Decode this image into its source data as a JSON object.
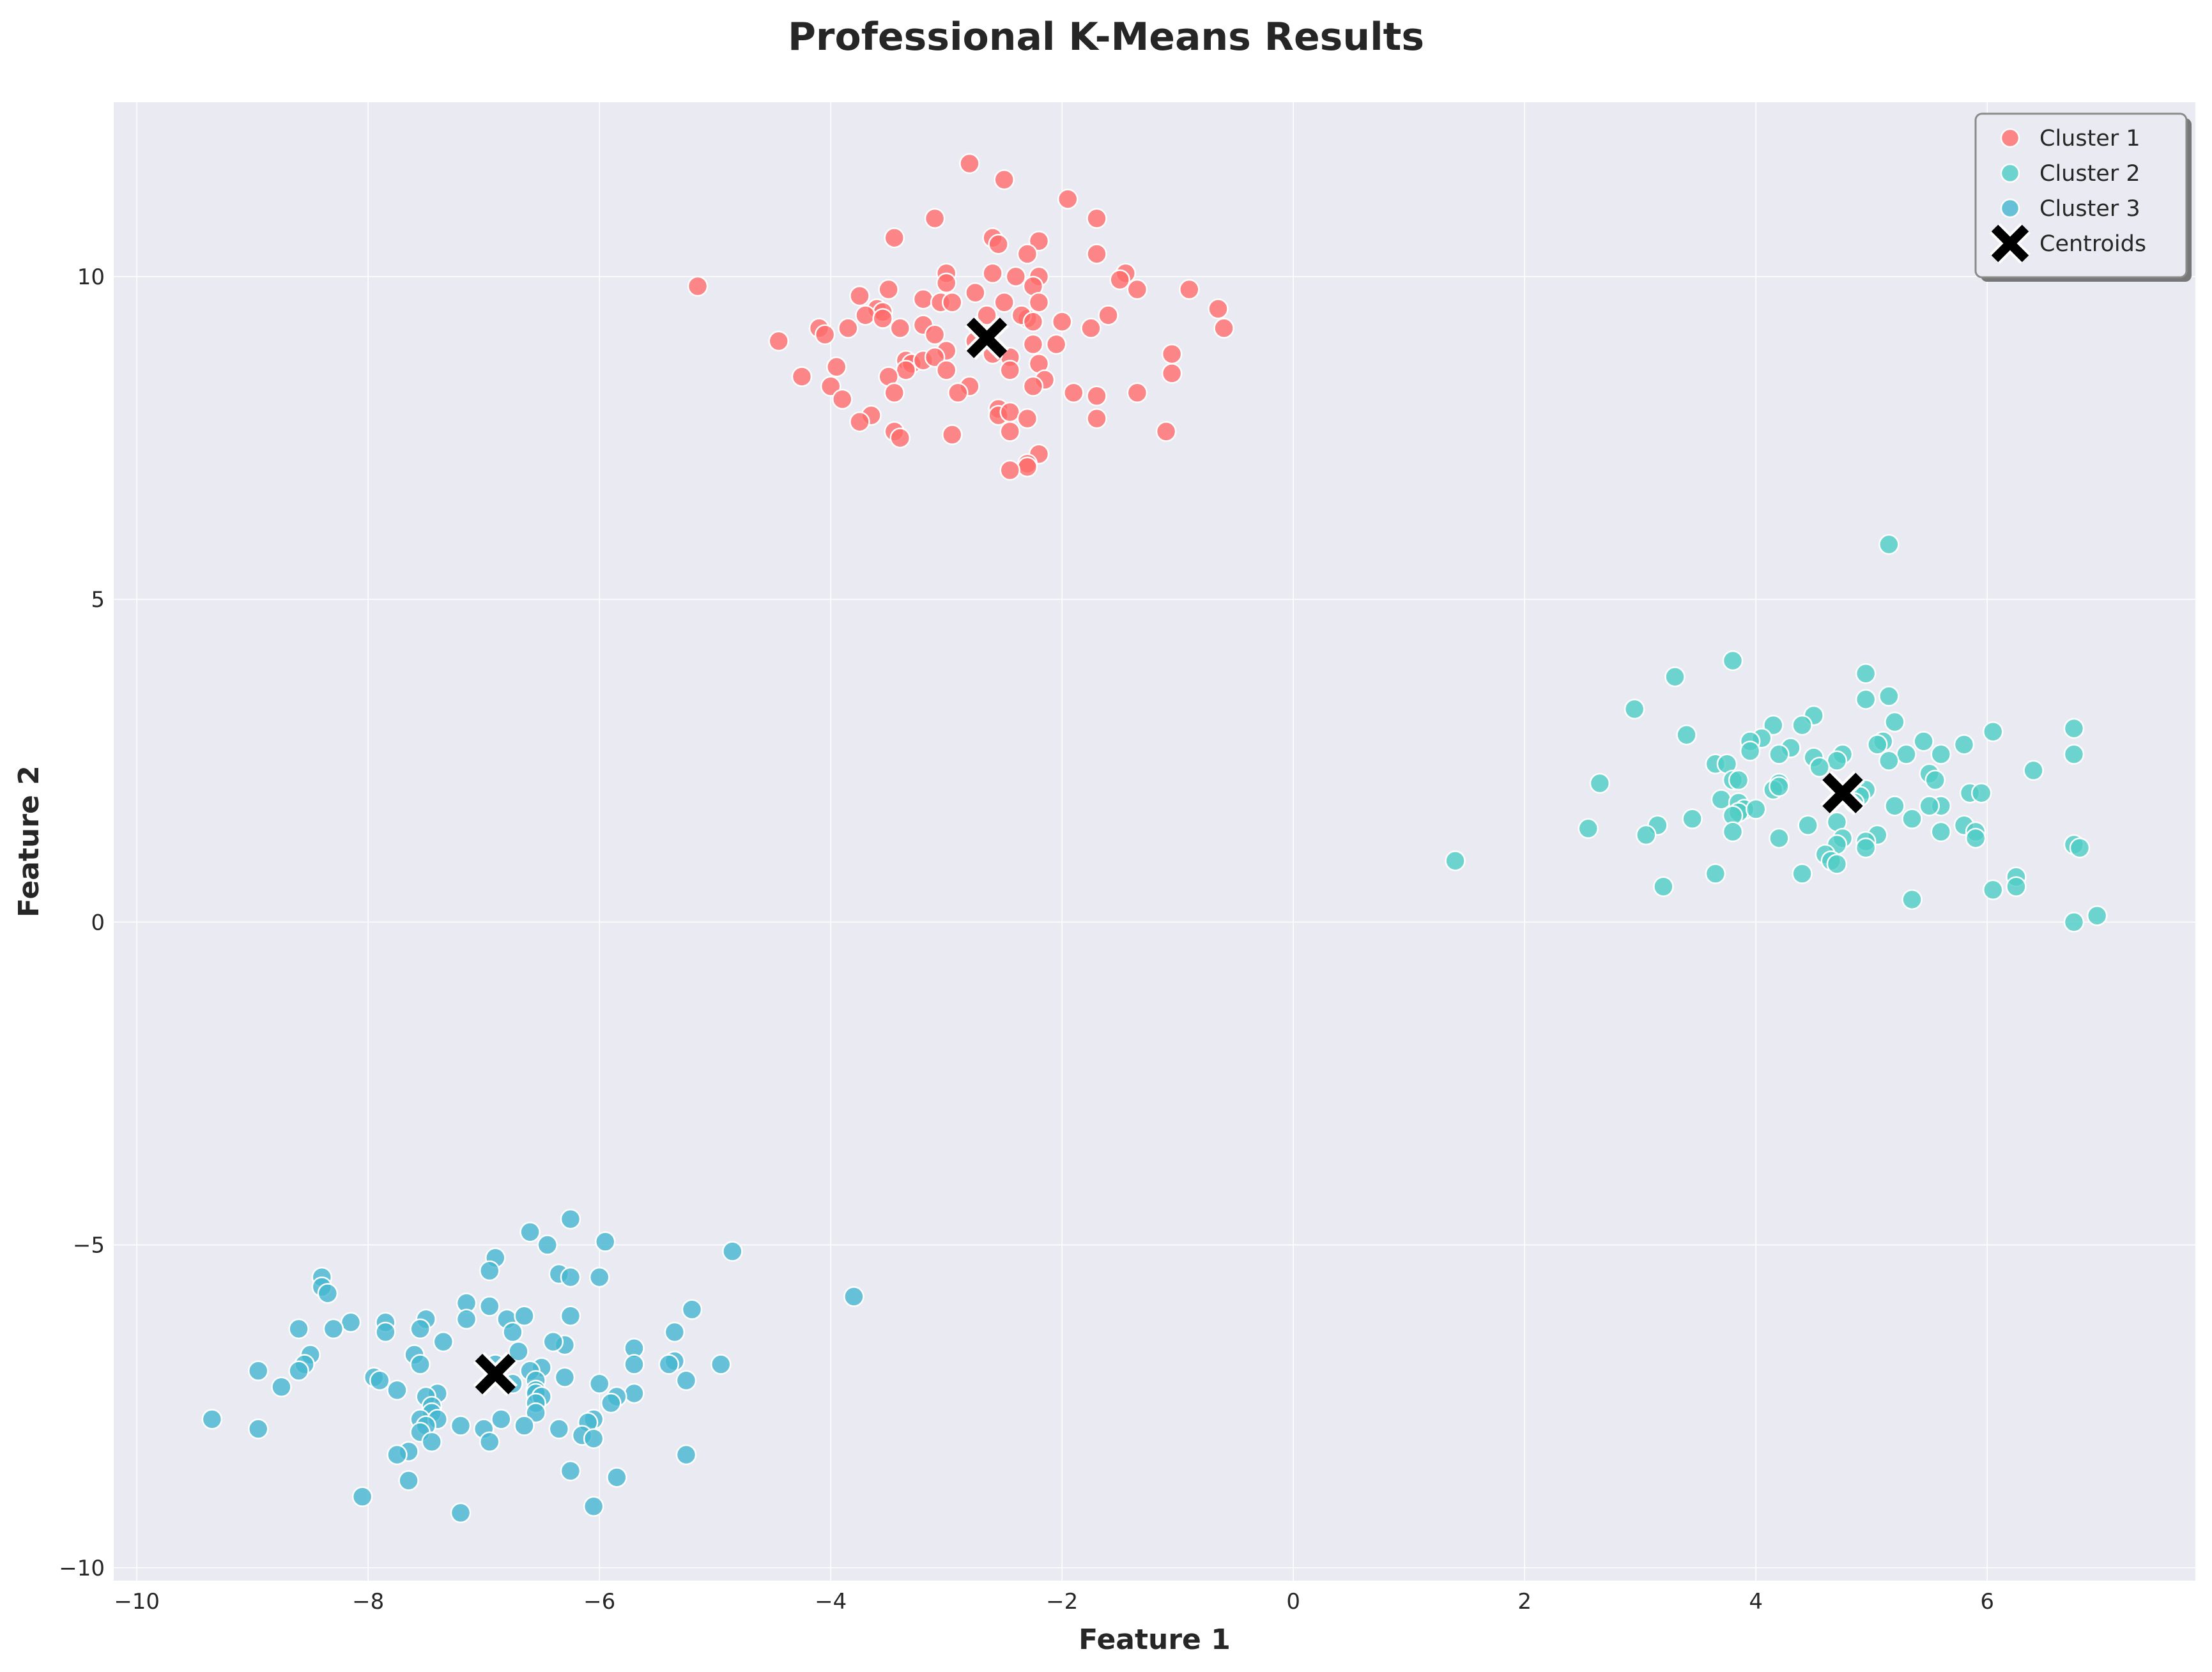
{
  "chart_data": {
    "type": "scatter",
    "title": "Professional K-Means Results",
    "xlabel": "Feature 1",
    "ylabel": "Feature 2",
    "xlim": [
      -10.2,
      7.8
    ],
    "ylim": [
      -10.2,
      12.7
    ],
    "x_ticks": [
      -10,
      -8,
      -6,
      -4,
      -2,
      0,
      2,
      4,
      6
    ],
    "y_ticks": [
      -10,
      -5,
      0,
      5,
      10
    ],
    "x_tick_labels": [
      "−10",
      "−8",
      "−6",
      "−4",
      "−2",
      "0",
      "2",
      "4",
      "6"
    ],
    "y_tick_labels": [
      "−10",
      "−5",
      "0",
      "5",
      "10"
    ],
    "grid": true,
    "legend_position": "top-right",
    "colors": {
      "background": "#EAEAF2",
      "grid": "#FFFFFF",
      "cluster_1": "#FF6B6B",
      "cluster_2": "#4ECDC4",
      "cluster_3": "#45B7D1",
      "centroid": "#000000"
    },
    "series": [
      {
        "name": "Cluster 1",
        "color": "#FF6B6B",
        "points": [
          [
            -2.8,
            11.75
          ],
          [
            -2.5,
            11.5
          ],
          [
            -1.95,
            11.2
          ],
          [
            -3.1,
            10.9
          ],
          [
            -1.7,
            10.9
          ],
          [
            -3.45,
            10.6
          ],
          [
            -2.6,
            10.6
          ],
          [
            -2.55,
            10.5
          ],
          [
            -2.2,
            10.55
          ],
          [
            -2.3,
            10.35
          ],
          [
            -1.7,
            10.35
          ],
          [
            -3.0,
            10.05
          ],
          [
            -2.4,
            10.0
          ],
          [
            -2.6,
            10.05
          ],
          [
            -2.2,
            10.0
          ],
          [
            -1.45,
            10.05
          ],
          [
            -1.5,
            9.95
          ],
          [
            -2.25,
            9.85
          ],
          [
            -3.0,
            9.9
          ],
          [
            -5.15,
            9.85
          ],
          [
            -1.35,
            9.8
          ],
          [
            -0.9,
            9.8
          ],
          [
            -3.5,
            9.8
          ],
          [
            -2.75,
            9.75
          ],
          [
            -3.75,
            9.7
          ],
          [
            -3.2,
            9.65
          ],
          [
            -3.05,
            9.6
          ],
          [
            -2.95,
            9.6
          ],
          [
            -2.2,
            9.6
          ],
          [
            -3.6,
            9.5
          ],
          [
            -3.55,
            9.45
          ],
          [
            -3.7,
            9.4
          ],
          [
            -3.55,
            9.35
          ],
          [
            -2.65,
            9.4
          ],
          [
            -2.3,
            9.35
          ],
          [
            -2.35,
            9.4
          ],
          [
            -1.6,
            9.4
          ],
          [
            -0.65,
            9.5
          ],
          [
            -2.0,
            9.3
          ],
          [
            -2.25,
            9.3
          ],
          [
            -3.2,
            9.25
          ],
          [
            -3.85,
            9.2
          ],
          [
            -4.1,
            9.2
          ],
          [
            -4.05,
            9.1
          ],
          [
            -3.4,
            9.2
          ],
          [
            -3.1,
            9.1
          ],
          [
            -1.75,
            9.2
          ],
          [
            -0.6,
            9.2
          ],
          [
            -2.75,
            9.0
          ],
          [
            -4.45,
            9.0
          ],
          [
            -2.05,
            8.95
          ],
          [
            -2.25,
            8.95
          ],
          [
            -3.0,
            8.85
          ],
          [
            -1.05,
            8.8
          ],
          [
            -3.35,
            8.7
          ],
          [
            -3.3,
            8.65
          ],
          [
            -3.2,
            8.7
          ],
          [
            -3.1,
            8.75
          ],
          [
            -2.45,
            8.75
          ],
          [
            -2.2,
            8.65
          ],
          [
            -3.95,
            8.6
          ],
          [
            -2.45,
            8.55
          ],
          [
            -3.0,
            8.55
          ],
          [
            -3.35,
            8.55
          ],
          [
            -1.05,
            8.5
          ],
          [
            -3.5,
            8.45
          ],
          [
            -4.25,
            8.45
          ],
          [
            -2.15,
            8.4
          ],
          [
            -2.25,
            8.3
          ],
          [
            -4.0,
            8.3
          ],
          [
            -2.8,
            8.3
          ],
          [
            -2.9,
            8.2
          ],
          [
            -3.45,
            8.2
          ],
          [
            -1.9,
            8.2
          ],
          [
            -1.35,
            8.2
          ],
          [
            -1.7,
            8.15
          ],
          [
            -3.9,
            8.1
          ],
          [
            -2.55,
            7.95
          ],
          [
            -2.55,
            7.85
          ],
          [
            -2.45,
            7.9
          ],
          [
            -3.65,
            7.85
          ],
          [
            -1.7,
            7.8
          ],
          [
            -2.3,
            7.8
          ],
          [
            -3.75,
            7.75
          ],
          [
            -3.45,
            7.6
          ],
          [
            -3.4,
            7.5
          ],
          [
            -2.95,
            7.55
          ],
          [
            -2.45,
            7.6
          ],
          [
            -1.1,
            7.6
          ],
          [
            -2.2,
            7.25
          ],
          [
            -2.3,
            7.1
          ],
          [
            -2.3,
            7.05
          ],
          [
            -2.45,
            7.0
          ],
          [
            -2.6,
            8.8
          ],
          [
            -2.5,
            9.6
          ]
        ]
      },
      {
        "name": "Cluster 2",
        "color": "#4ECDC4",
        "points": [
          [
            5.15,
            5.85
          ],
          [
            3.8,
            4.05
          ],
          [
            4.95,
            3.85
          ],
          [
            3.3,
            3.8
          ],
          [
            4.95,
            3.45
          ],
          [
            5.15,
            3.5
          ],
          [
            2.95,
            3.3
          ],
          [
            4.5,
            3.2
          ],
          [
            4.15,
            3.05
          ],
          [
            5.2,
            3.1
          ],
          [
            4.4,
            3.05
          ],
          [
            6.75,
            3.0
          ],
          [
            6.05,
            2.95
          ],
          [
            3.4,
            2.9
          ],
          [
            4.05,
            2.85
          ],
          [
            3.95,
            2.8
          ],
          [
            5.45,
            2.8
          ],
          [
            5.8,
            2.75
          ],
          [
            5.1,
            2.8
          ],
          [
            4.3,
            2.7
          ],
          [
            5.05,
            2.75
          ],
          [
            3.95,
            2.65
          ],
          [
            4.75,
            2.6
          ],
          [
            5.3,
            2.6
          ],
          [
            5.6,
            2.6
          ],
          [
            6.75,
            2.6
          ],
          [
            4.2,
            2.6
          ],
          [
            4.5,
            2.55
          ],
          [
            4.7,
            2.5
          ],
          [
            5.15,
            2.5
          ],
          [
            3.65,
            2.45
          ],
          [
            3.75,
            2.45
          ],
          [
            4.55,
            2.4
          ],
          [
            6.4,
            2.35
          ],
          [
            5.5,
            2.3
          ],
          [
            5.55,
            2.2
          ],
          [
            3.8,
            2.2
          ],
          [
            3.85,
            2.2
          ],
          [
            4.2,
            2.15
          ],
          [
            2.65,
            2.15
          ],
          [
            4.15,
            2.05
          ],
          [
            4.2,
            2.1
          ],
          [
            4.85,
            2.1
          ],
          [
            4.95,
            2.05
          ],
          [
            5.85,
            2.0
          ],
          [
            5.95,
            2.0
          ],
          [
            4.9,
            1.95
          ],
          [
            3.7,
            1.9
          ],
          [
            3.85,
            1.85
          ],
          [
            5.2,
            1.8
          ],
          [
            5.6,
            1.8
          ],
          [
            5.5,
            1.8
          ],
          [
            3.9,
            1.75
          ],
          [
            3.85,
            1.7
          ],
          [
            4.0,
            1.75
          ],
          [
            3.8,
            1.65
          ],
          [
            3.45,
            1.6
          ],
          [
            4.7,
            1.55
          ],
          [
            5.35,
            1.6
          ],
          [
            5.8,
            1.5
          ],
          [
            4.45,
            1.5
          ],
          [
            3.15,
            1.5
          ],
          [
            2.55,
            1.45
          ],
          [
            3.8,
            1.4
          ],
          [
            5.9,
            1.4
          ],
          [
            5.6,
            1.4
          ],
          [
            3.05,
            1.35
          ],
          [
            5.05,
            1.35
          ],
          [
            4.2,
            1.3
          ],
          [
            4.75,
            1.3
          ],
          [
            5.9,
            1.3
          ],
          [
            4.95,
            1.25
          ],
          [
            4.7,
            1.2
          ],
          [
            6.75,
            1.2
          ],
          [
            6.8,
            1.15
          ],
          [
            4.95,
            1.15
          ],
          [
            4.6,
            1.05
          ],
          [
            4.65,
            0.95
          ],
          [
            4.7,
            0.9
          ],
          [
            1.4,
            0.95
          ],
          [
            3.65,
            0.75
          ],
          [
            4.4,
            0.75
          ],
          [
            6.25,
            0.7
          ],
          [
            3.2,
            0.55
          ],
          [
            6.05,
            0.5
          ],
          [
            6.25,
            0.55
          ],
          [
            5.35,
            0.35
          ],
          [
            6.95,
            0.1
          ],
          [
            6.75,
            0.0
          ],
          [
            4.85,
            1.85
          ]
        ]
      },
      {
        "name": "Cluster 3",
        "color": "#45B7D1",
        "points": [
          [
            -6.25,
            -4.6
          ],
          [
            -6.6,
            -4.8
          ],
          [
            -6.45,
            -5.0
          ],
          [
            -5.95,
            -4.95
          ],
          [
            -4.85,
            -5.1
          ],
          [
            -6.9,
            -5.2
          ],
          [
            -6.35,
            -5.45
          ],
          [
            -6.0,
            -5.5
          ],
          [
            -6.25,
            -5.5
          ],
          [
            -8.4,
            -5.5
          ],
          [
            -8.4,
            -5.65
          ],
          [
            -8.35,
            -5.75
          ],
          [
            -3.8,
            -5.8
          ],
          [
            -6.95,
            -5.4
          ],
          [
            -7.15,
            -5.9
          ],
          [
            -6.95,
            -5.95
          ],
          [
            -5.2,
            -6.0
          ],
          [
            -6.25,
            -6.1
          ],
          [
            -7.15,
            -6.15
          ],
          [
            -6.8,
            -6.15
          ],
          [
            -6.65,
            -6.1
          ],
          [
            -8.15,
            -6.2
          ],
          [
            -7.5,
            -6.15
          ],
          [
            -7.85,
            -6.2
          ],
          [
            -7.55,
            -6.3
          ],
          [
            -8.6,
            -6.3
          ],
          [
            -8.3,
            -6.3
          ],
          [
            -6.75,
            -6.35
          ],
          [
            -5.35,
            -6.35
          ],
          [
            -7.85,
            -6.35
          ],
          [
            -7.35,
            -6.5
          ],
          [
            -6.3,
            -6.55
          ],
          [
            -6.4,
            -6.5
          ],
          [
            -5.7,
            -6.6
          ],
          [
            -8.5,
            -6.7
          ],
          [
            -7.6,
            -6.7
          ],
          [
            -6.7,
            -6.65
          ],
          [
            -6.9,
            -6.85
          ],
          [
            -8.55,
            -6.85
          ],
          [
            -7.55,
            -6.85
          ],
          [
            -5.35,
            -6.8
          ],
          [
            -5.4,
            -6.85
          ],
          [
            -5.7,
            -6.85
          ],
          [
            -4.95,
            -6.85
          ],
          [
            -8.6,
            -6.95
          ],
          [
            -6.5,
            -6.9
          ],
          [
            -6.6,
            -6.95
          ],
          [
            -8.95,
            -6.95
          ],
          [
            -6.3,
            -7.05
          ],
          [
            -7.95,
            -7.05
          ],
          [
            -7.9,
            -7.1
          ],
          [
            -5.25,
            -7.1
          ],
          [
            -6.55,
            -7.1
          ],
          [
            -6.75,
            -7.15
          ],
          [
            -6.0,
            -7.15
          ],
          [
            -8.75,
            -7.2
          ],
          [
            -7.75,
            -7.25
          ],
          [
            -6.55,
            -7.25
          ],
          [
            -6.55,
            -7.3
          ],
          [
            -7.4,
            -7.3
          ],
          [
            -5.7,
            -7.3
          ],
          [
            -6.5,
            -7.35
          ],
          [
            -7.5,
            -7.35
          ],
          [
            -5.85,
            -7.35
          ],
          [
            -5.9,
            -7.45
          ],
          [
            -6.55,
            -7.45
          ],
          [
            -7.45,
            -7.5
          ],
          [
            -6.55,
            -7.6
          ],
          [
            -7.45,
            -7.6
          ],
          [
            -7.55,
            -7.7
          ],
          [
            -7.4,
            -7.7
          ],
          [
            -6.85,
            -7.7
          ],
          [
            -6.05,
            -7.7
          ],
          [
            -6.1,
            -7.75
          ],
          [
            -6.65,
            -7.8
          ],
          [
            -7.5,
            -7.8
          ],
          [
            -7.2,
            -7.8
          ],
          [
            -7.0,
            -7.85
          ],
          [
            -6.35,
            -7.85
          ],
          [
            -9.35,
            -7.7
          ],
          [
            -8.95,
            -7.85
          ],
          [
            -6.15,
            -7.95
          ],
          [
            -6.05,
            -8.0
          ],
          [
            -7.55,
            -7.9
          ],
          [
            -7.45,
            -8.05
          ],
          [
            -6.95,
            -8.05
          ],
          [
            -7.65,
            -8.2
          ],
          [
            -7.75,
            -8.25
          ],
          [
            -5.25,
            -8.25
          ],
          [
            -6.25,
            -8.5
          ],
          [
            -5.85,
            -8.6
          ],
          [
            -7.65,
            -8.65
          ],
          [
            -8.05,
            -8.9
          ],
          [
            -6.05,
            -9.05
          ],
          [
            -7.2,
            -9.15
          ]
        ]
      }
    ],
    "centroids": {
      "name": "Centroids",
      "color": "#000000",
      "points": [
        [
          -2.65,
          9.05
        ],
        [
          4.75,
          2.0
        ],
        [
          -6.9,
          -7.0
        ]
      ]
    },
    "legend": [
      "Cluster 1",
      "Cluster 2",
      "Cluster 3",
      "Centroids"
    ]
  }
}
